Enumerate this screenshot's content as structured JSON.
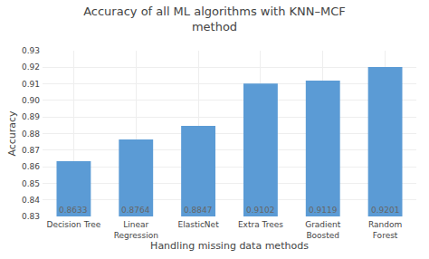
{
  "chart_data": {
    "type": "bar",
    "title": "Accuracy of all ML algorithms with KNN–MCF\nmethod",
    "xlabel": "Handling missing data methods",
    "ylabel": "Accuracy",
    "categories": [
      "Decision Tree",
      "Linear\nRegression",
      "ElasticNet",
      "Extra Trees",
      "Gradient\nBoosted",
      "Random\nForest"
    ],
    "values": [
      0.8633,
      0.8764,
      0.8847,
      0.9102,
      0.9119,
      0.9201
    ],
    "color": "#5B9BD5",
    "ylim": [
      0.83,
      0.93
    ],
    "yticks": [
      0.83,
      0.84,
      0.85,
      0.86,
      0.87,
      0.88,
      0.89,
      {
        "value": 0.9,
        "label": "0.90"
      },
      0.91,
      0.92,
      0.93
    ],
    "grid": true,
    "data_labels": true
  }
}
